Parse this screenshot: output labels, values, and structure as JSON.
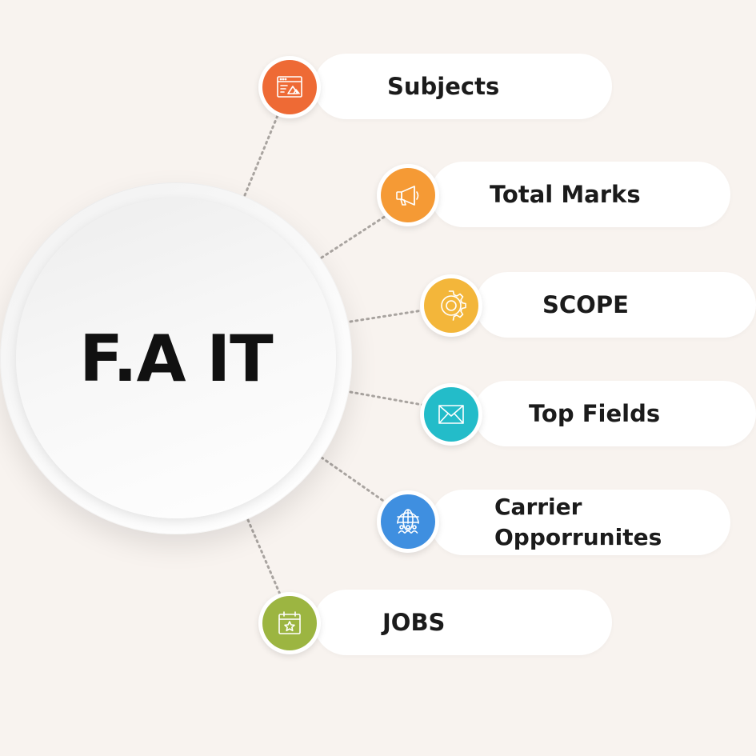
{
  "center": {
    "title": "F.A IT"
  },
  "items": [
    {
      "label": "Subjects",
      "icon": "browser-window-icon",
      "color": "#ee6a35"
    },
    {
      "label": "Total Marks",
      "icon": "megaphone-icon",
      "color": "#f59a35"
    },
    {
      "label": "SCOPE",
      "icon": "gear-icon",
      "color": "#f3b63a"
    },
    {
      "label": "Top Fields",
      "icon": "envelope-icon",
      "color": "#23bcc9"
    },
    {
      "label": "Carrier Opporrunites",
      "line1": "Carrier",
      "line2": "Opporrunites",
      "icon": "globe-people-icon",
      "color": "#3f8fe0"
    },
    {
      "label": "JOBS",
      "icon": "calendar-star-icon",
      "color": "#9cb541"
    }
  ]
}
